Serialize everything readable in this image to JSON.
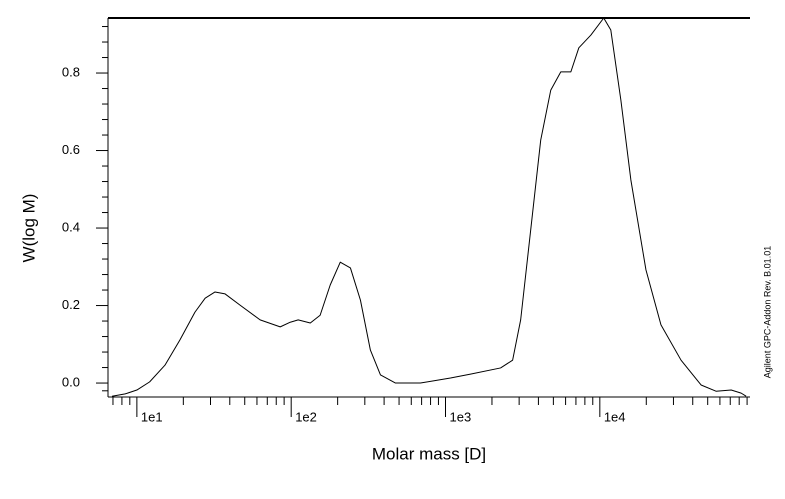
{
  "chart_data": {
    "type": "line",
    "x_label": "Molar mass [D]",
    "y_label": "W(log M)",
    "annotation": "Agilent GPC-Addon  Rev. B.01.01",
    "x_scale": "log",
    "color": "#000000",
    "xlim": [
      6.5,
      94000
    ],
    "ylim": [
      -0.036,
      0.942
    ],
    "xticks": [
      {
        "value": 10,
        "label": "1e1"
      },
      {
        "value": 100,
        "label": "1e2"
      },
      {
        "value": 1000,
        "label": "1e3"
      },
      {
        "value": 10000,
        "label": "1e4"
      }
    ],
    "xticks_minor": [
      7,
      8,
      9,
      20,
      30,
      40,
      50,
      60,
      70,
      80,
      90,
      200,
      300,
      400,
      500,
      600,
      700,
      800,
      900,
      2000,
      3000,
      4000,
      5000,
      6000,
      7000,
      8000,
      9000,
      20000,
      30000,
      40000,
      50000,
      60000,
      70000,
      80000,
      90000
    ],
    "yticks": [
      {
        "value": 0,
        "label": "0.0"
      },
      0.2,
      0.4,
      0.6,
      0.8
    ],
    "yticks_minor": [
      -0.02,
      0.04,
      0.08,
      0.12,
      0.16,
      0.24,
      0.28,
      0.32,
      0.36,
      0.44,
      0.48,
      0.52,
      0.56,
      0.64,
      0.68,
      0.72,
      0.76,
      0.84,
      0.88,
      0.92
    ],
    "x": [
      6.9,
      8.4,
      10,
      12.1,
      15.2,
      19.0,
      23.8,
      27.7,
      32.1,
      37.3,
      46.6,
      62.9,
      84.9,
      98.6,
      111,
      133,
      154,
      179,
      208,
      242,
      281,
      326,
      379,
      474,
      688,
      1077,
      1452,
      2275,
      2722,
      3069,
      3565,
      4140,
      4810,
      5585,
      6490,
      7310,
      8750,
      10600,
      11780,
      13680,
      15890,
      19900,
      24900,
      33600,
      45300,
      56600,
      71000,
      82400,
      88700
    ],
    "values": [
      -0.034,
      -0.028,
      -0.018,
      0.003,
      0.046,
      0.111,
      0.183,
      0.219,
      0.235,
      0.23,
      0.201,
      0.163,
      0.145,
      0.157,
      0.163,
      0.155,
      0.175,
      0.253,
      0.312,
      0.297,
      0.214,
      0.085,
      0.021,
      0.0,
      0.0,
      0.013,
      0.023,
      0.039,
      0.059,
      0.163,
      0.395,
      0.627,
      0.756,
      0.803,
      0.803,
      0.865,
      0.898,
      0.942,
      0.911,
      0.731,
      0.524,
      0.292,
      0.15,
      0.059,
      -0.005,
      -0.021,
      -0.018,
      -0.026,
      -0.034
    ]
  }
}
